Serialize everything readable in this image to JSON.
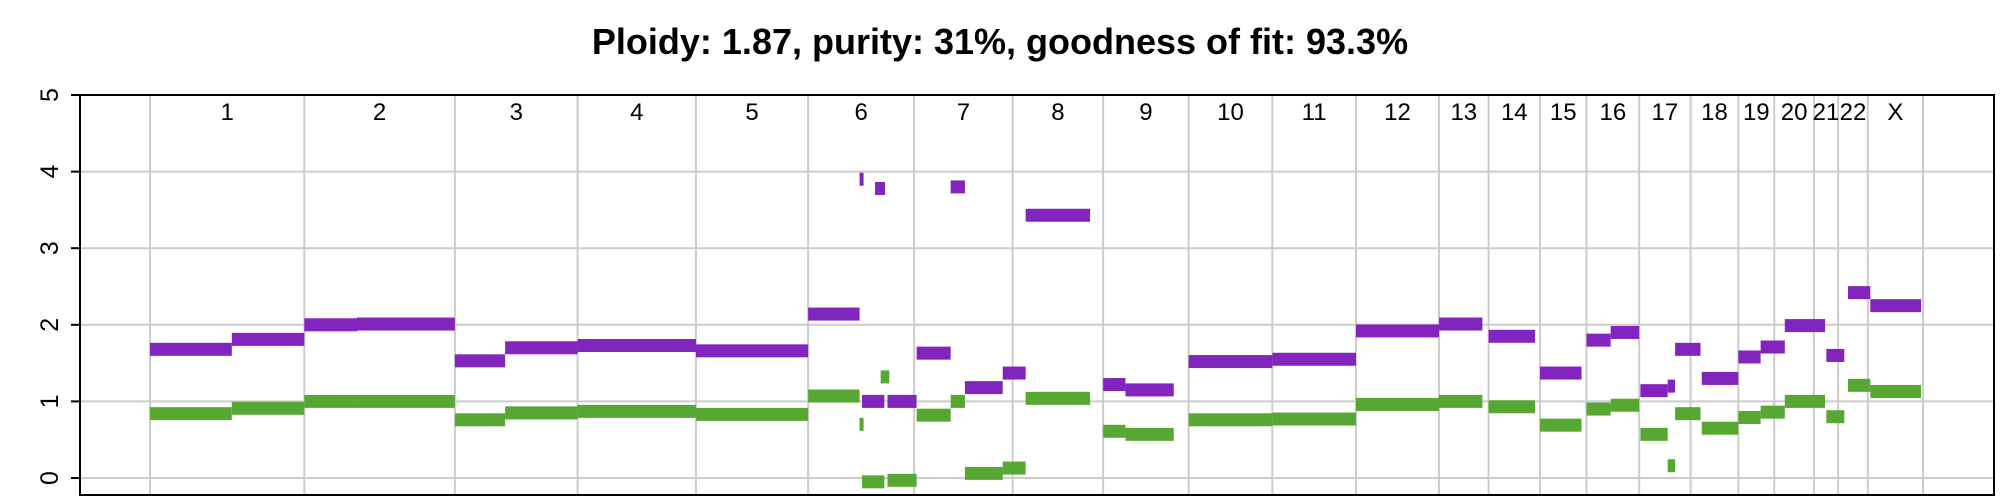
{
  "chart_data": {
    "type": "segment",
    "title": "Ploidy: 1.87, purity: 31%, goodness of fit: 93.3%",
    "xlabel": "",
    "ylabel": "",
    "ylim": [
      0,
      5
    ],
    "yticks": [
      0,
      1,
      2,
      3,
      4,
      5
    ],
    "grid": true,
    "colors": {
      "major": "#8224be",
      "minor": "#57a832"
    },
    "chromosomes": [
      {
        "name": "1",
        "start": 0,
        "end": 249
      },
      {
        "name": "2",
        "start": 249,
        "end": 492
      },
      {
        "name": "3",
        "start": 492,
        "end": 690
      },
      {
        "name": "4",
        "start": 690,
        "end": 881
      },
      {
        "name": "5",
        "start": 881,
        "end": 1062
      },
      {
        "name": "6",
        "start": 1062,
        "end": 1233
      },
      {
        "name": "7",
        "start": 1233,
        "end": 1392
      },
      {
        "name": "8",
        "start": 1392,
        "end": 1538
      },
      {
        "name": "9",
        "start": 1538,
        "end": 1676
      },
      {
        "name": "10",
        "start": 1676,
        "end": 1811
      },
      {
        "name": "11",
        "start": 1811,
        "end": 1946
      },
      {
        "name": "12",
        "start": 1946,
        "end": 2080
      },
      {
        "name": "13",
        "start": 2080,
        "end": 2160
      },
      {
        "name": "14",
        "start": 2160,
        "end": 2243
      },
      {
        "name": "15",
        "start": 2243,
        "end": 2318
      },
      {
        "name": "16",
        "start": 2318,
        "end": 2403
      },
      {
        "name": "17",
        "start": 2403,
        "end": 2486
      },
      {
        "name": "18",
        "start": 2486,
        "end": 2563
      },
      {
        "name": "19",
        "start": 2563,
        "end": 2621
      },
      {
        "name": "20",
        "start": 2621,
        "end": 2685
      },
      {
        "name": "21",
        "start": 2685,
        "end": 2724
      },
      {
        "name": "22",
        "start": 2724,
        "end": 2772
      },
      {
        "name": "X",
        "start": 2772,
        "end": 2861
      }
    ],
    "series": [
      {
        "name": "",
        "segments": [
          {
            "x0": 0,
            "x1": 132,
            "y": 1.68
          },
          {
            "x0": 132,
            "x1": 249,
            "y": 1.81
          },
          {
            "x0": 249,
            "x1": 334,
            "y": 2.0
          },
          {
            "x0": 334,
            "x1": 492,
            "y": 2.01
          },
          {
            "x0": 492,
            "x1": 573,
            "y": 1.53
          },
          {
            "x0": 573,
            "x1": 690,
            "y": 1.7
          },
          {
            "x0": 690,
            "x1": 881,
            "y": 1.73
          },
          {
            "x0": 881,
            "x1": 1062,
            "y": 1.66
          },
          {
            "x0": 1062,
            "x1": 1145,
            "y": 2.14
          },
          {
            "x0": 1145,
            "x1": 1149,
            "y": 3.9
          },
          {
            "x0": 1170,
            "x1": 1186,
            "y": 3.78
          },
          {
            "x0": 1149,
            "x1": 1185,
            "y": 1.0
          },
          {
            "x0": 1190,
            "x1": 1237,
            "y": 1.0
          },
          {
            "x0": 1237,
            "x1": 1292,
            "y": 1.63
          },
          {
            "x0": 1292,
            "x1": 1315,
            "y": 3.8
          },
          {
            "x0": 1315,
            "x1": 1376,
            "y": 1.18
          },
          {
            "x0": 1376,
            "x1": 1413,
            "y": 1.37
          },
          {
            "x0": 1413,
            "x1": 1517,
            "y": 3.43
          },
          {
            "x0": 1538,
            "x1": 1574,
            "y": 1.22
          },
          {
            "x0": 1574,
            "x1": 1652,
            "y": 1.15
          },
          {
            "x0": 1676,
            "x1": 1811,
            "y": 1.52
          },
          {
            "x0": 1811,
            "x1": 1946,
            "y": 1.55
          },
          {
            "x0": 1946,
            "x1": 2080,
            "y": 1.92
          },
          {
            "x0": 2080,
            "x1": 2150,
            "y": 2.01
          },
          {
            "x0": 2160,
            "x1": 2235,
            "y": 1.85
          },
          {
            "x0": 2243,
            "x1": 2310,
            "y": 1.37
          },
          {
            "x0": 2318,
            "x1": 2357,
            "y": 1.8
          },
          {
            "x0": 2357,
            "x1": 2403,
            "y": 1.9
          },
          {
            "x0": 2405,
            "x1": 2449,
            "y": 1.14
          },
          {
            "x0": 2449,
            "x1": 2461,
            "y": 1.2
          },
          {
            "x0": 2461,
            "x1": 2502,
            "y": 1.68
          },
          {
            "x0": 2504,
            "x1": 2563,
            "y": 1.3
          },
          {
            "x0": 2563,
            "x1": 2599,
            "y": 1.58
          },
          {
            "x0": 2599,
            "x1": 2638,
            "y": 1.71
          },
          {
            "x0": 2638,
            "x1": 2703,
            "y": 1.99
          },
          {
            "x0": 2705,
            "x1": 2734,
            "y": 1.6
          },
          {
            "x0": 2740,
            "x1": 2776,
            "y": 2.42
          },
          {
            "x0": 2776,
            "x1": 2858,
            "y": 2.25
          }
        ]
      },
      {
        "name": "",
        "segments": [
          {
            "x0": 0,
            "x1": 132,
            "y": 0.84
          },
          {
            "x0": 132,
            "x1": 249,
            "y": 0.91
          },
          {
            "x0": 249,
            "x1": 334,
            "y": 1.0
          },
          {
            "x0": 334,
            "x1": 492,
            "y": 1.0
          },
          {
            "x0": 492,
            "x1": 573,
            "y": 0.76
          },
          {
            "x0": 573,
            "x1": 690,
            "y": 0.85
          },
          {
            "x0": 690,
            "x1": 881,
            "y": 0.87
          },
          {
            "x0": 881,
            "x1": 1062,
            "y": 0.83
          },
          {
            "x0": 1062,
            "x1": 1145,
            "y": 1.07
          },
          {
            "x0": 1145,
            "x1": 1149,
            "y": 0.7
          },
          {
            "x0": 1149,
            "x1": 1185,
            "y": -0.05
          },
          {
            "x0": 1179,
            "x1": 1193,
            "y": 1.32
          },
          {
            "x0": 1190,
            "x1": 1237,
            "y": -0.03
          },
          {
            "x0": 1237,
            "x1": 1292,
            "y": 0.82
          },
          {
            "x0": 1292,
            "x1": 1315,
            "y": 1.0
          },
          {
            "x0": 1315,
            "x1": 1376,
            "y": 0.06
          },
          {
            "x0": 1376,
            "x1": 1413,
            "y": 0.13
          },
          {
            "x0": 1413,
            "x1": 1517,
            "y": 1.04
          },
          {
            "x0": 1538,
            "x1": 1574,
            "y": 0.61
          },
          {
            "x0": 1574,
            "x1": 1652,
            "y": 0.57
          },
          {
            "x0": 1676,
            "x1": 1811,
            "y": 0.76
          },
          {
            "x0": 1811,
            "x1": 1946,
            "y": 0.77
          },
          {
            "x0": 1946,
            "x1": 2080,
            "y": 0.96
          },
          {
            "x0": 2080,
            "x1": 2150,
            "y": 1.0
          },
          {
            "x0": 2160,
            "x1": 2235,
            "y": 0.93
          },
          {
            "x0": 2243,
            "x1": 2310,
            "y": 0.69
          },
          {
            "x0": 2318,
            "x1": 2357,
            "y": 0.9
          },
          {
            "x0": 2357,
            "x1": 2403,
            "y": 0.95
          },
          {
            "x0": 2405,
            "x1": 2449,
            "y": 0.57
          },
          {
            "x0": 2449,
            "x1": 2461,
            "y": 0.16
          },
          {
            "x0": 2461,
            "x1": 2502,
            "y": 0.84
          },
          {
            "x0": 2504,
            "x1": 2563,
            "y": 0.65
          },
          {
            "x0": 2563,
            "x1": 2599,
            "y": 0.79
          },
          {
            "x0": 2599,
            "x1": 2638,
            "y": 0.86
          },
          {
            "x0": 2638,
            "x1": 2703,
            "y": 1.0
          },
          {
            "x0": 2705,
            "x1": 2734,
            "y": 0.8
          },
          {
            "x0": 2740,
            "x1": 2776,
            "y": 1.21
          },
          {
            "x0": 2776,
            "x1": 2858,
            "y": 1.13
          }
        ]
      }
    ]
  }
}
